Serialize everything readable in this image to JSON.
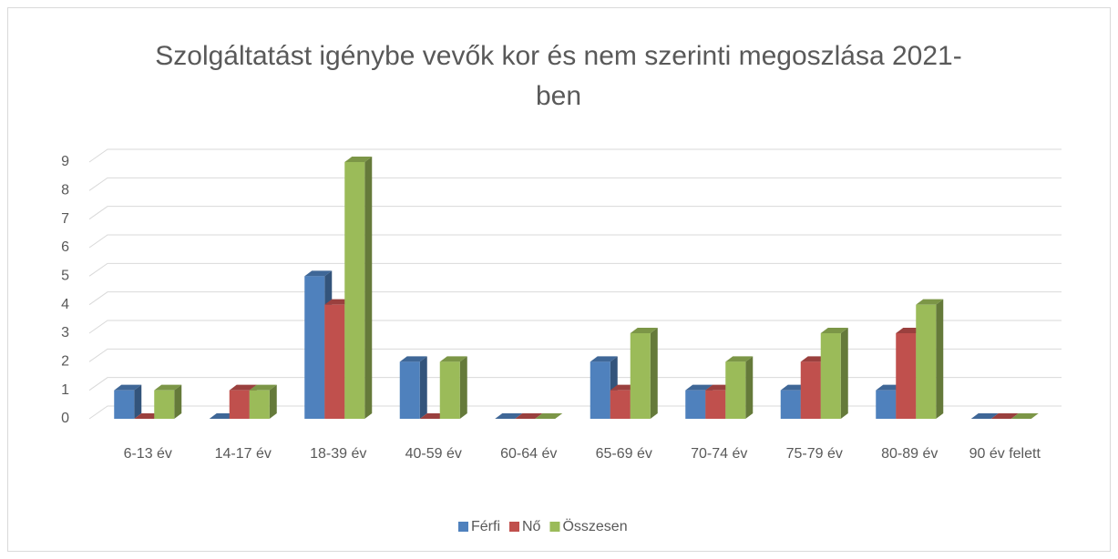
{
  "chart_data": {
    "type": "bar3d",
    "title": "Szolgáltatást igénybe vevők kor és nem szerinti megoszlása 2021-ben",
    "categories": [
      "6-13 év",
      "14-17 év",
      "18-39 év",
      "40-59 év",
      "60-64 év",
      "65-69 év",
      "70-74 év",
      "75-79 év",
      "80-89 év",
      "90 év felett"
    ],
    "series": [
      {
        "name": "Férfi",
        "color": "#4f81bd",
        "values": [
          1,
          0,
          5,
          2,
          0,
          2,
          1,
          1,
          1,
          0
        ]
      },
      {
        "name": "Nő",
        "color": "#c0504d",
        "values": [
          0,
          1,
          4,
          0,
          0,
          1,
          1,
          2,
          3,
          0
        ]
      },
      {
        "name": "Összesen",
        "color": "#9bbb59",
        "values": [
          1,
          1,
          9,
          2,
          0,
          3,
          2,
          3,
          4,
          0
        ]
      }
    ],
    "ylim": [
      0,
      9
    ],
    "yticks": [
      0,
      1,
      2,
      3,
      4,
      5,
      6,
      7,
      8,
      9
    ],
    "grid": true,
    "legend": "bottom"
  }
}
